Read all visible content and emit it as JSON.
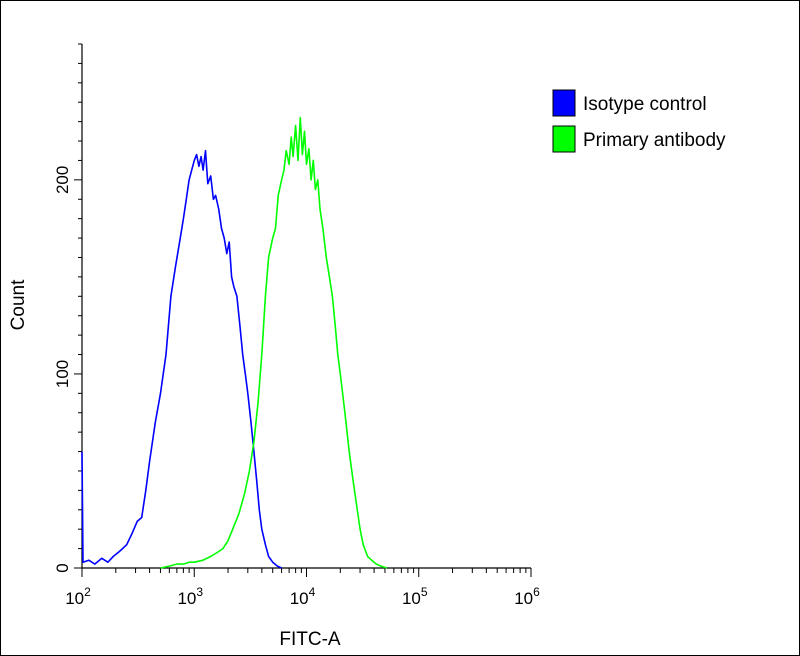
{
  "chart_data": {
    "type": "line",
    "xlabel": "FITC-A",
    "ylabel": "Count",
    "x_scale": "log",
    "xlim": [
      100,
      1000000
    ],
    "ylim": [
      0,
      270
    ],
    "x_ticks": [
      {
        "value": 100,
        "base": "10",
        "exp": "2"
      },
      {
        "value": 1000,
        "base": "10",
        "exp": "3"
      },
      {
        "value": 10000,
        "base": "10",
        "exp": "4"
      },
      {
        "value": 100000,
        "base": "10",
        "exp": "5"
      },
      {
        "value": 1000000,
        "base": "10",
        "exp": "6"
      }
    ],
    "y_ticks": [
      {
        "value": 0,
        "label": "0"
      },
      {
        "value": 100,
        "label": "100"
      },
      {
        "value": 200,
        "label": "200"
      }
    ],
    "grid": false,
    "legend_position": "top-right",
    "series": [
      {
        "name": "Isotype control",
        "color": "#0000ff",
        "points": [
          [
            100,
            60
          ],
          [
            102,
            3
          ],
          [
            115,
            4
          ],
          [
            130,
            2
          ],
          [
            150,
            5
          ],
          [
            170,
            3
          ],
          [
            190,
            6
          ],
          [
            210,
            8
          ],
          [
            230,
            10
          ],
          [
            250,
            12
          ],
          [
            280,
            18
          ],
          [
            310,
            24
          ],
          [
            340,
            26
          ],
          [
            370,
            40
          ],
          [
            400,
            55
          ],
          [
            450,
            75
          ],
          [
            500,
            90
          ],
          [
            560,
            110
          ],
          [
            620,
            140
          ],
          [
            680,
            155
          ],
          [
            740,
            168
          ],
          [
            800,
            180
          ],
          [
            850,
            190
          ],
          [
            900,
            200
          ],
          [
            950,
            205
          ],
          [
            1000,
            210
          ],
          [
            1050,
            213
          ],
          [
            1100,
            207
          ],
          [
            1150,
            212
          ],
          [
            1200,
            205
          ],
          [
            1260,
            215
          ],
          [
            1320,
            198
          ],
          [
            1400,
            202
          ],
          [
            1480,
            190
          ],
          [
            1550,
            192
          ],
          [
            1650,
            185
          ],
          [
            1750,
            175
          ],
          [
            1850,
            170
          ],
          [
            1950,
            162
          ],
          [
            2050,
            168
          ],
          [
            2150,
            150
          ],
          [
            2250,
            145
          ],
          [
            2400,
            140
          ],
          [
            2550,
            125
          ],
          [
            2700,
            110
          ],
          [
            2850,
            100
          ],
          [
            3000,
            90
          ],
          [
            3200,
            75
          ],
          [
            3400,
            60
          ],
          [
            3600,
            45
          ],
          [
            3800,
            30
          ],
          [
            4000,
            20
          ],
          [
            4300,
            12
          ],
          [
            4600,
            6
          ],
          [
            5000,
            3
          ],
          [
            5500,
            1
          ],
          [
            6000,
            0
          ]
        ]
      },
      {
        "name": "Primary antibody",
        "color": "#00ff00",
        "points": [
          [
            500,
            0
          ],
          [
            600,
            1
          ],
          [
            700,
            2
          ],
          [
            800,
            2
          ],
          [
            900,
            3
          ],
          [
            1000,
            3
          ],
          [
            1200,
            4
          ],
          [
            1400,
            6
          ],
          [
            1600,
            8
          ],
          [
            1800,
            10
          ],
          [
            2000,
            14
          ],
          [
            2200,
            20
          ],
          [
            2500,
            28
          ],
          [
            2800,
            38
          ],
          [
            3100,
            50
          ],
          [
            3400,
            65
          ],
          [
            3700,
            85
          ],
          [
            4000,
            110
          ],
          [
            4300,
            140
          ],
          [
            4600,
            160
          ],
          [
            5000,
            170
          ],
          [
            5300,
            175
          ],
          [
            5600,
            192
          ],
          [
            6000,
            200
          ],
          [
            6300,
            205
          ],
          [
            6600,
            215
          ],
          [
            7000,
            208
          ],
          [
            7300,
            222
          ],
          [
            7600,
            212
          ],
          [
            8000,
            228
          ],
          [
            8400,
            210
          ],
          [
            8800,
            232
          ],
          [
            9200,
            213
          ],
          [
            9600,
            225
          ],
          [
            10000,
            208
          ],
          [
            10500,
            216
          ],
          [
            11000,
            200
          ],
          [
            11500,
            210
          ],
          [
            12000,
            195
          ],
          [
            12600,
            200
          ],
          [
            13200,
            185
          ],
          [
            14000,
            175
          ],
          [
            15000,
            160
          ],
          [
            16000,
            150
          ],
          [
            17000,
            140
          ],
          [
            18000,
            125
          ],
          [
            19000,
            110
          ],
          [
            20000,
            100
          ],
          [
            22000,
            80
          ],
          [
            24000,
            60
          ],
          [
            26000,
            45
          ],
          [
            28000,
            32
          ],
          [
            30000,
            20
          ],
          [
            32000,
            12
          ],
          [
            35000,
            6
          ],
          [
            38000,
            4
          ],
          [
            42000,
            2
          ],
          [
            46000,
            1
          ],
          [
            52000,
            0
          ]
        ]
      }
    ]
  }
}
